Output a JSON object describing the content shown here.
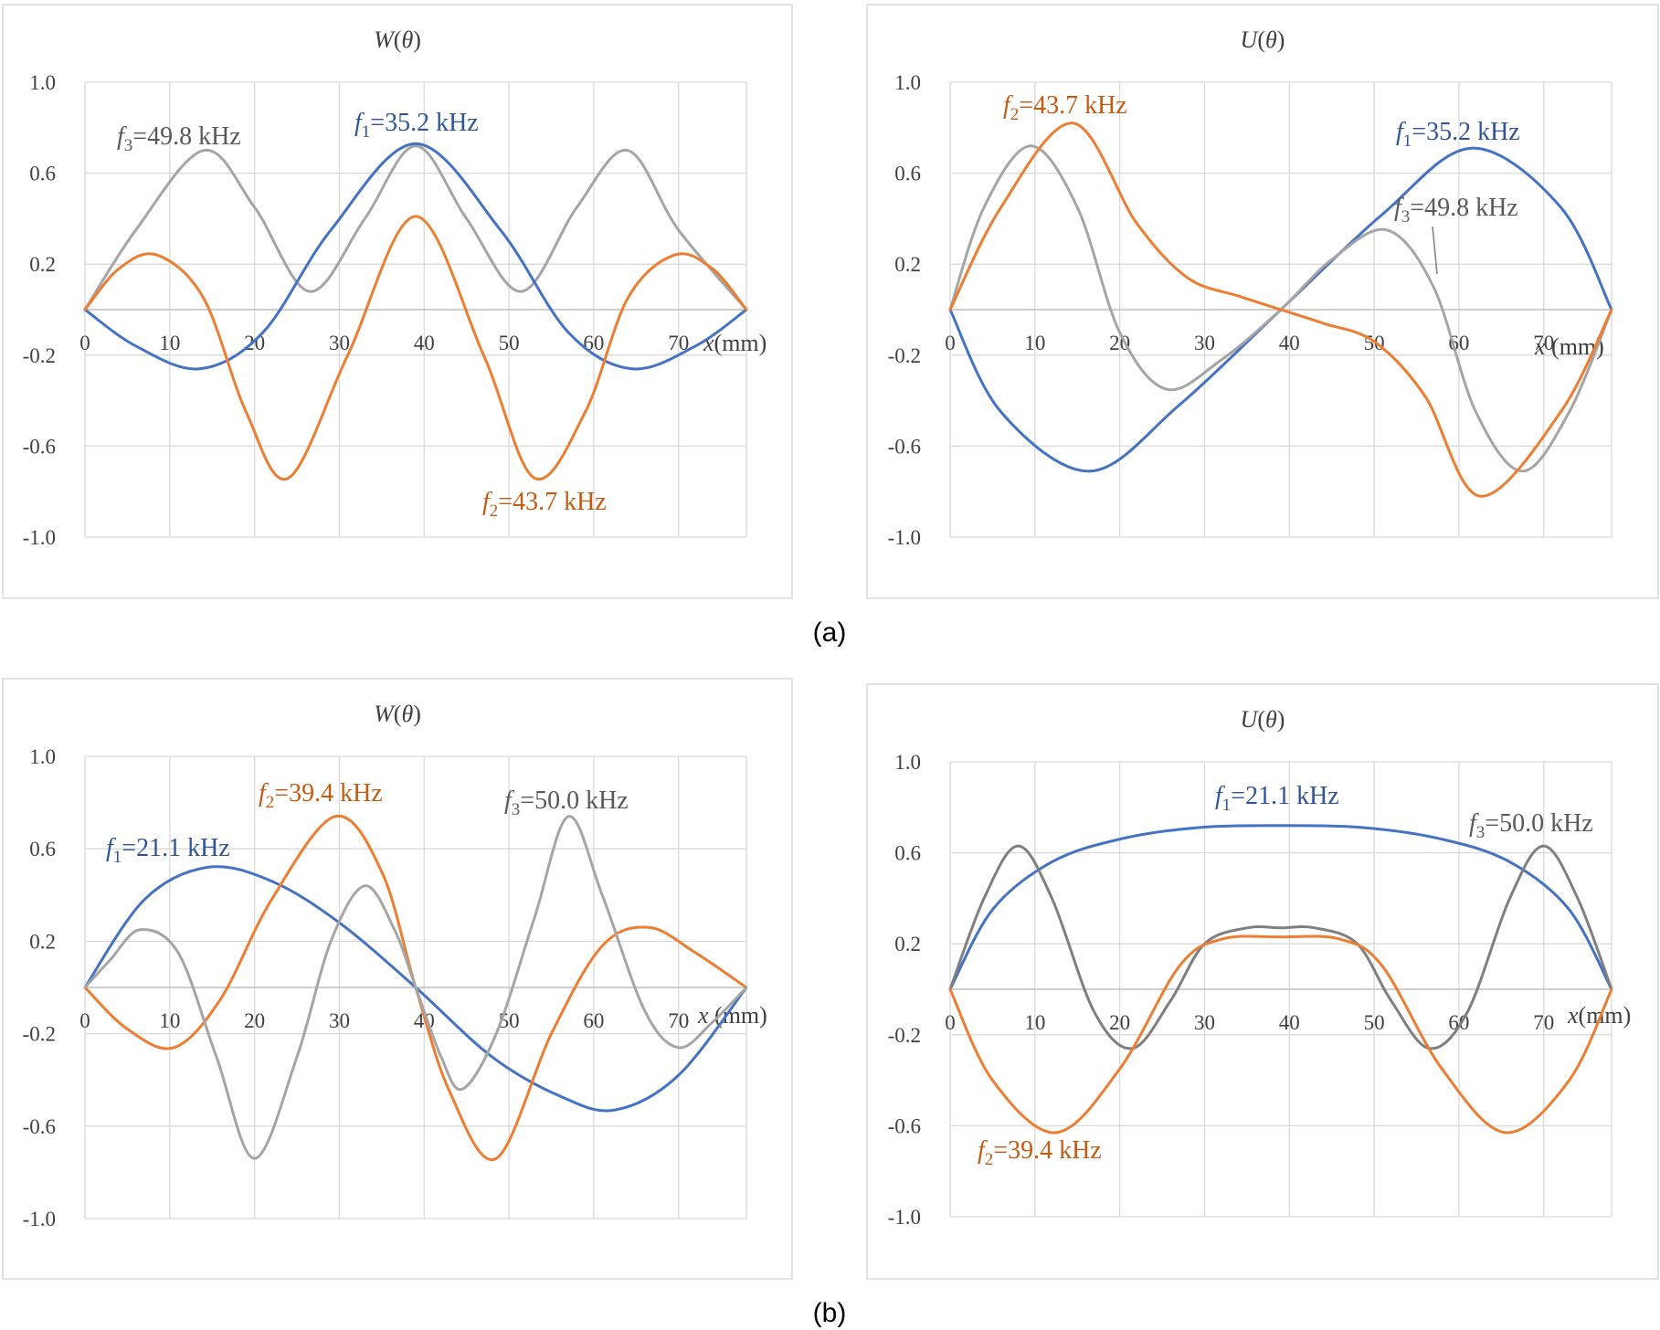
{
  "figure": {
    "labels": [
      "(a)",
      "(b)"
    ]
  },
  "colors": {
    "f1": "#4472c4",
    "f2": "#ed7d31",
    "f3": "#a5a5a5",
    "f3_dark": "#7f7f7f",
    "f1_text": "#2f5597",
    "f2_text": "#c55a11",
    "f3_text": "#595959"
  },
  "chart_data": [
    {
      "id": "a-W",
      "type": "line",
      "title": "W(θ)",
      "title_main": "W",
      "title_arg": "θ",
      "xlabel": "x(mm)",
      "xlabel_var": "x",
      "xlabel_unit": "(mm)",
      "xlim": [
        0,
        78
      ],
      "ylim": [
        -1.0,
        1.0
      ],
      "xticks": [
        0,
        10,
        20,
        30,
        40,
        50,
        60,
        70
      ],
      "yticks": [
        1.0,
        0.6,
        0.2,
        -0.2,
        -0.6,
        -1.0
      ],
      "ytick_labels": [
        "1.0",
        "0.6",
        "0.2",
        "-0.2",
        "-0.6",
        "-1.0"
      ],
      "series": [
        {
          "key": "f3",
          "name": "f3=49.8 kHz",
          "var": "f",
          "sub": "3",
          "value": "=49.8 kHz",
          "x": [
            0,
            6,
            14,
            20,
            26.5,
            33,
            39,
            45,
            51.5,
            58,
            64,
            70,
            78
          ],
          "y": [
            0,
            0.35,
            0.7,
            0.45,
            0.08,
            0.4,
            0.72,
            0.4,
            0.08,
            0.45,
            0.7,
            0.35,
            0
          ]
        },
        {
          "key": "f1",
          "name": "f1=35.2 kHz",
          "var": "f",
          "sub": "1",
          "value": "=35.2 kHz",
          "x": [
            0,
            6,
            13.5,
            21,
            29,
            39,
            49,
            57,
            64.5,
            72,
            78
          ],
          "y": [
            0,
            -0.16,
            -0.26,
            -0.1,
            0.35,
            0.73,
            0.35,
            -0.1,
            -0.26,
            -0.16,
            0
          ],
          "annotation_pos": "top-center"
        },
        {
          "key": "f2",
          "name": "f2=43.7 kHz",
          "var": "f",
          "sub": "2",
          "value": "=43.7 kHz",
          "x": [
            0,
            4,
            8.5,
            14,
            19,
            24,
            31,
            39,
            47,
            53,
            59,
            64,
            69.5,
            74,
            78
          ],
          "y": [
            0,
            0.18,
            0.24,
            0.05,
            -0.45,
            -0.74,
            -0.2,
            0.41,
            -0.2,
            -0.74,
            -0.45,
            0.05,
            0.24,
            0.18,
            0
          ]
        }
      ]
    },
    {
      "id": "a-U",
      "type": "line",
      "title": "U(θ)",
      "title_main": "U",
      "title_arg": "θ",
      "xlabel": "x (mm)",
      "xlabel_var": "x",
      "xlabel_unit": " (mm)",
      "xlim": [
        0,
        78
      ],
      "ylim": [
        -1.0,
        1.0
      ],
      "xticks": [
        0,
        10,
        20,
        30,
        40,
        50,
        60,
        70
      ],
      "yticks": [
        1.0,
        0.6,
        0.2,
        -0.2,
        -0.6,
        -1.0
      ],
      "ytick_labels": [
        "1.0",
        "0.6",
        "0.2",
        "-0.2",
        "-0.6",
        "-1.0"
      ],
      "series": [
        {
          "key": "f1",
          "name": "f1=35.2 kHz",
          "var": "f",
          "sub": "1",
          "value": "=35.2 kHz",
          "x": [
            0,
            6,
            16.5,
            27,
            39,
            51,
            61.5,
            72,
            78
          ],
          "y": [
            0,
            -0.45,
            -0.71,
            -0.42,
            0,
            0.42,
            0.71,
            0.45,
            0
          ]
        },
        {
          "key": "f3",
          "name": "f3=49.8 kHz",
          "var": "f",
          "sub": "3",
          "value": "=49.8 kHz",
          "x": [
            0,
            4,
            9.5,
            15,
            20,
            25.5,
            32,
            39,
            45,
            51.5,
            57,
            62,
            67.5,
            73,
            78
          ],
          "y": [
            0,
            0.45,
            0.72,
            0.45,
            -0.1,
            -0.35,
            -0.22,
            0,
            0.22,
            0.35,
            0.1,
            -0.45,
            -0.71,
            -0.45,
            0
          ]
        },
        {
          "key": "f2",
          "name": "f2=43.7 kHz",
          "var": "f",
          "sub": "2",
          "value": "=43.7 kHz",
          "x": [
            0,
            6,
            14.5,
            22,
            28,
            34,
            39,
            44,
            50,
            56,
            62.5,
            72,
            78
          ],
          "y": [
            0,
            0.45,
            0.82,
            0.38,
            0.14,
            0.06,
            0,
            -0.06,
            -0.14,
            -0.38,
            -0.82,
            -0.45,
            0
          ]
        }
      ]
    },
    {
      "id": "b-W",
      "type": "line",
      "title": "W(θ)",
      "title_main": "W",
      "title_arg": "θ",
      "xlabel": "x (mm)",
      "xlabel_var": "x",
      "xlabel_unit": " (mm)",
      "xlim": [
        0,
        78
      ],
      "ylim": [
        -1.0,
        1.0
      ],
      "xticks": [
        0,
        10,
        20,
        30,
        40,
        50,
        60,
        70
      ],
      "yticks": [
        1.0,
        0.6,
        0.2,
        -0.2,
        -0.6,
        -1.0
      ],
      "ytick_labels": [
        "1.0",
        "0.6",
        "0.2",
        "-0.2",
        "-0.6",
        "-1.0"
      ],
      "series": [
        {
          "key": "f1",
          "name": "f1=21.1 kHz",
          "var": "f",
          "sub": "1",
          "value": "=21.1 kHz",
          "x": [
            0,
            7,
            14.5,
            22,
            30,
            39,
            48,
            56,
            62.5,
            70,
            78
          ],
          "y": [
            0,
            0.38,
            0.52,
            0.46,
            0.28,
            0,
            -0.3,
            -0.47,
            -0.53,
            -0.38,
            0
          ]
        },
        {
          "key": "f2",
          "name": "f2=39.4 kHz",
          "var": "f",
          "sub": "2",
          "value": "=39.4 kHz",
          "x": [
            0,
            5,
            10.5,
            16,
            22,
            29.5,
            35,
            39,
            43,
            48.5,
            55,
            61,
            66.5,
            72,
            78
          ],
          "y": [
            0,
            -0.18,
            -0.26,
            -0.05,
            0.38,
            0.74,
            0.5,
            0,
            -0.45,
            -0.74,
            -0.2,
            0.18,
            0.26,
            0.15,
            0
          ]
        },
        {
          "key": "f3",
          "name": "f3=50.0 kHz",
          "var": "f",
          "sub": "3",
          "value": "=50.0 kHz",
          "x": [
            0,
            3,
            6.5,
            11,
            15.5,
            20,
            25,
            29,
            33,
            36.5,
            39,
            42,
            44.5,
            48.5,
            53,
            57,
            61,
            66,
            70,
            74,
            78
          ],
          "y": [
            0,
            0.12,
            0.25,
            0.15,
            -0.3,
            -0.74,
            -0.3,
            0.2,
            0.44,
            0.25,
            0,
            -0.3,
            -0.44,
            -0.2,
            0.3,
            0.74,
            0.4,
            -0.1,
            -0.26,
            -0.15,
            0
          ]
        }
      ]
    },
    {
      "id": "b-U",
      "type": "line",
      "title": "U(θ)",
      "title_main": "U",
      "title_arg": "θ",
      "xlabel": "x(mm)",
      "xlabel_var": "x",
      "xlabel_unit": "(mm)",
      "xlim": [
        0,
        78
      ],
      "ylim": [
        -1.0,
        1.0
      ],
      "xticks": [
        0,
        10,
        20,
        30,
        40,
        50,
        60,
        70
      ],
      "yticks": [
        1.0,
        0.6,
        0.2,
        -0.2,
        -0.6,
        -1.0
      ],
      "ytick_labels": [
        "1.0",
        "0.6",
        "0.2",
        "-0.2",
        "-0.6",
        "-1.0"
      ],
      "series": [
        {
          "key": "f1",
          "name": "f1=21.1 kHz",
          "var": "f",
          "sub": "1",
          "value": "=21.1 kHz",
          "x": [
            0,
            5,
            12,
            20,
            29,
            39,
            49,
            58,
            66,
            73,
            78
          ],
          "y": [
            0,
            0.35,
            0.56,
            0.66,
            0.71,
            0.72,
            0.71,
            0.66,
            0.56,
            0.35,
            0
          ]
        },
        {
          "key": "f3",
          "name": "f3=50.0 kHz",
          "var": "f",
          "sub": "3",
          "value": "=50.0 kHz",
          "x": [
            0,
            4,
            8,
            12,
            17,
            21.5,
            26,
            30,
            35,
            39,
            43,
            48,
            52,
            56.5,
            61,
            66,
            70,
            74,
            78
          ],
          "y": [
            0,
            0.4,
            0.63,
            0.4,
            -0.1,
            -0.26,
            -0.05,
            0.2,
            0.27,
            0.27,
            0.27,
            0.2,
            -0.05,
            -0.26,
            -0.1,
            0.4,
            0.63,
            0.4,
            0
          ]
        },
        {
          "key": "f2",
          "name": "f2=39.4 kHz",
          "var": "f",
          "sub": "2",
          "value": "=39.4 kHz",
          "x": [
            0,
            5,
            12.5,
            20,
            27,
            32,
            39,
            46,
            51,
            58,
            65.5,
            73,
            78
          ],
          "y": [
            0,
            -0.4,
            -0.63,
            -0.35,
            0.1,
            0.22,
            0.23,
            0.22,
            0.1,
            -0.35,
            -0.63,
            -0.4,
            0
          ]
        }
      ]
    }
  ]
}
